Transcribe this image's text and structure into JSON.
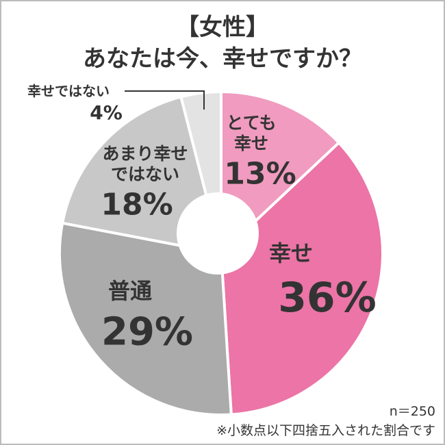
{
  "chart_data": {
    "type": "donut",
    "title": "【女性】",
    "subtitle": "あなたは今、幸せですか？",
    "categories": [
      "とても幸せ",
      "幸せ",
      "普通",
      "あまり幸せではない",
      "幸せではない"
    ],
    "values": [
      13,
      36,
      29,
      18,
      4
    ],
    "value_labels": [
      "13%",
      "36%",
      "29%",
      "18%",
      "4%"
    ],
    "colors": [
      "#f09bbf",
      "#ec74a6",
      "#ababab",
      "#c8c8c8",
      "#e3e3e3"
    ],
    "note_n": "n＝250",
    "footnote": "※小数点以下四捨五入された割合です"
  }
}
